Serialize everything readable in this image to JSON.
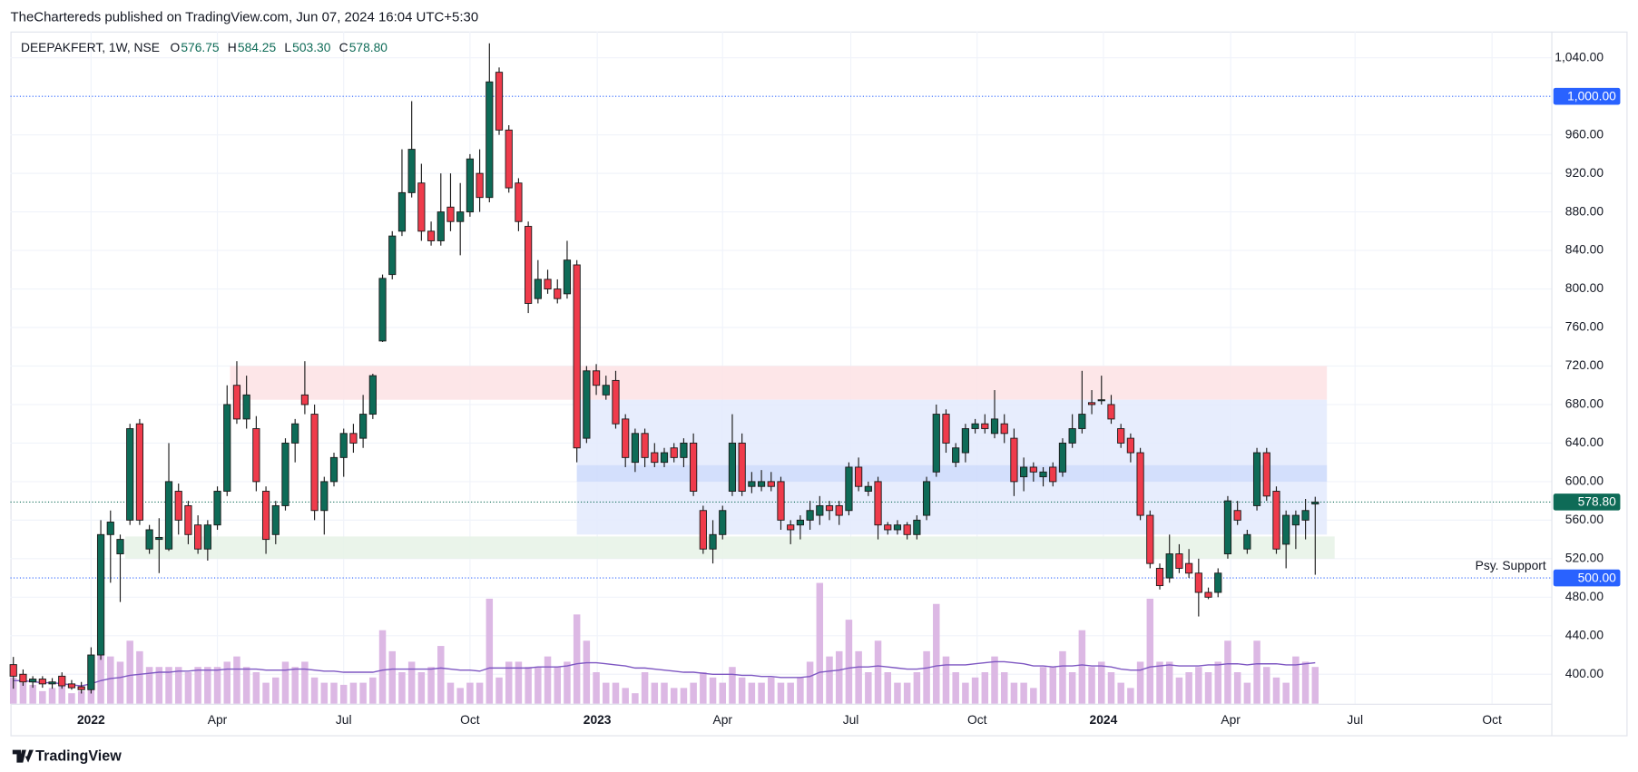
{
  "header": {
    "text": "TheChartereds published on TradingView.com, Jun 07, 2024 16:04 UTC+5:30"
  },
  "footer": {
    "brand": "TradingView"
  },
  "chart_data": {
    "type": "candlestick",
    "legend": {
      "title": "DEEPAKFERT, 1W, NSE",
      "items": [
        {
          "key": "O",
          "value": "576.75"
        },
        {
          "key": "H",
          "value": "584.25"
        },
        {
          "key": "L",
          "value": "503.30"
        },
        {
          "key": "C",
          "value": "578.80"
        }
      ]
    },
    "up_color": "#0e6b57",
    "down_color": "#ef3b4b",
    "volume_color": "#dcb8e4",
    "ma_color": "#7e57c2",
    "xlim": [
      -0.3,
      158.3
    ],
    "ylim": [
      369.4,
      1067.3
    ],
    "volume_ylim": [
      0,
      640
    ],
    "grid": true,
    "xticks": [
      {
        "value": 8,
        "label": "2022"
      },
      {
        "value": 21,
        "label": "Apr"
      },
      {
        "value": 34,
        "label": "Jul"
      },
      {
        "value": 47,
        "label": "Oct"
      },
      {
        "value": 60.1,
        "label": "2023"
      },
      {
        "value": 73,
        "label": "Apr"
      },
      {
        "value": 86.2,
        "label": "Jul"
      },
      {
        "value": 99.2,
        "label": "Oct"
      },
      {
        "value": 112.2,
        "label": "2024"
      },
      {
        "value": 125.3,
        "label": "Apr"
      },
      {
        "value": 138.1,
        "label": "Jul"
      },
      {
        "value": 152.2,
        "label": "Oct"
      }
    ],
    "yticks": [
      {
        "value": 400,
        "label": "400.00"
      },
      {
        "value": 440,
        "label": "440.00"
      },
      {
        "value": 480,
        "label": "480.00"
      },
      {
        "value": 520,
        "label": "520.00"
      },
      {
        "value": 560,
        "label": "560.00"
      },
      {
        "value": 600,
        "label": "600.00"
      },
      {
        "value": 640,
        "label": "640.00"
      },
      {
        "value": 680,
        "label": "680.00"
      },
      {
        "value": 720,
        "label": "720.00"
      },
      {
        "value": 760,
        "label": "760.00"
      },
      {
        "value": 800,
        "label": "800.00"
      },
      {
        "value": 840,
        "label": "840.00"
      },
      {
        "value": 880,
        "label": "880.00"
      },
      {
        "value": 920,
        "label": "920.00"
      },
      {
        "value": 960,
        "label": "960.00"
      },
      {
        "value": 1040,
        "label": "1,040.00"
      }
    ],
    "zones": [
      {
        "range": [
          685,
          720
        ],
        "start": 22.3,
        "end": 135.2,
        "color": "#fde2e4"
      },
      {
        "range": [
          545,
          685
        ],
        "start": 58,
        "end": 135.2,
        "color": "#e3eafd"
      },
      {
        "range": [
          600,
          617
        ],
        "start": 58,
        "end": 135.2,
        "color": "#cfdcfb"
      },
      {
        "range": [
          520,
          543
        ],
        "start": 11.5,
        "end": 136,
        "color": "#e6f2e6"
      }
    ],
    "price_lines": [
      {
        "value": 1000,
        "label": "1,000.00",
        "color": "#2962ff"
      },
      {
        "value": 500,
        "label": "500.00",
        "color": "#2962ff",
        "note": "Psy. Support"
      },
      {
        "value": 578.8,
        "label": "578.80",
        "color": "#0e6b57"
      }
    ],
    "candles": [
      [
        410,
        418,
        385,
        398
      ],
      [
        400,
        405,
        388,
        392
      ],
      [
        392,
        398,
        386,
        395
      ],
      [
        395,
        398,
        386,
        390
      ],
      [
        390,
        396,
        385,
        392
      ],
      [
        398,
        402,
        385,
        388
      ],
      [
        390,
        394,
        384,
        386
      ],
      [
        387,
        392,
        380,
        384
      ],
      [
        384,
        428,
        380,
        420
      ],
      [
        420,
        560,
        415,
        545
      ],
      [
        545,
        570,
        495,
        558
      ],
      [
        525,
        545,
        475,
        540
      ],
      [
        560,
        660,
        555,
        655
      ],
      [
        660,
        665,
        555,
        560
      ],
      [
        530,
        555,
        525,
        550
      ],
      [
        540,
        562,
        505,
        542
      ],
      [
        530,
        640,
        528,
        600
      ],
      [
        590,
        598,
        545,
        560
      ],
      [
        575,
        580,
        535,
        545
      ],
      [
        555,
        565,
        525,
        530
      ],
      [
        530,
        560,
        518,
        555
      ],
      [
        555,
        595,
        550,
        590
      ],
      [
        590,
        700,
        585,
        680
      ],
      [
        700,
        725,
        660,
        665
      ],
      [
        665,
        710,
        655,
        690
      ],
      [
        655,
        668,
        590,
        600
      ],
      [
        590,
        595,
        525,
        540
      ],
      [
        545,
        580,
        535,
        575
      ],
      [
        575,
        645,
        570,
        640
      ],
      [
        640,
        665,
        620,
        660
      ],
      [
        690,
        725,
        670,
        680
      ],
      [
        670,
        680,
        560,
        570
      ],
      [
        570,
        605,
        545,
        600
      ],
      [
        600,
        630,
        595,
        625
      ],
      [
        625,
        655,
        605,
        650
      ],
      [
        650,
        660,
        630,
        640
      ],
      [
        645,
        690,
        635,
        670
      ],
      [
        670,
        712,
        665,
        710
      ],
      [
        746,
        815,
        745,
        811
      ],
      [
        815,
        860,
        810,
        855
      ],
      [
        860,
        945,
        855,
        900
      ],
      [
        900,
        995,
        895,
        945
      ],
      [
        910,
        930,
        850,
        860
      ],
      [
        860,
        870,
        845,
        850
      ],
      [
        850,
        920,
        845,
        880
      ],
      [
        885,
        920,
        860,
        870
      ],
      [
        870,
        910,
        835,
        880
      ],
      [
        880,
        940,
        875,
        935
      ],
      [
        920,
        945,
        880,
        895
      ],
      [
        895,
        1055,
        890,
        1015
      ],
      [
        1025,
        1030,
        960,
        965
      ],
      [
        965,
        970,
        900,
        905
      ],
      [
        910,
        915,
        860,
        870
      ],
      [
        865,
        870,
        775,
        785
      ],
      [
        790,
        830,
        785,
        810
      ],
      [
        810,
        820,
        795,
        800
      ],
      [
        800,
        810,
        785,
        790
      ],
      [
        795,
        850,
        790,
        830
      ],
      [
        825,
        830,
        620,
        635
      ],
      [
        645,
        720,
        640,
        715
      ],
      [
        715,
        722,
        690,
        700
      ],
      [
        690,
        710,
        685,
        700
      ],
      [
        705,
        715,
        655,
        660
      ],
      [
        665,
        670,
        615,
        625
      ],
      [
        620,
        655,
        610,
        650
      ],
      [
        650,
        655,
        615,
        625
      ],
      [
        630,
        640,
        615,
        620
      ],
      [
        620,
        635,
        615,
        630
      ],
      [
        635,
        640,
        620,
        625
      ],
      [
        625,
        645,
        615,
        640
      ],
      [
        640,
        650,
        585,
        590
      ],
      [
        570,
        575,
        525,
        530
      ],
      [
        530,
        560,
        515,
        545
      ],
      [
        545,
        575,
        540,
        570
      ],
      [
        590,
        670,
        585,
        640
      ],
      [
        640,
        650,
        585,
        590
      ],
      [
        595,
        610,
        588,
        600
      ],
      [
        595,
        612,
        590,
        600
      ],
      [
        600,
        610,
        590,
        595
      ],
      [
        600,
        605,
        550,
        560
      ],
      [
        555,
        560,
        535,
        550
      ],
      [
        555,
        565,
        540,
        560
      ],
      [
        560,
        580,
        550,
        570
      ],
      [
        565,
        585,
        555,
        575
      ],
      [
        575,
        580,
        560,
        570
      ],
      [
        575,
        580,
        555,
        565
      ],
      [
        570,
        620,
        565,
        615
      ],
      [
        615,
        625,
        590,
        595
      ],
      [
        590,
        600,
        585,
        595
      ],
      [
        600,
        605,
        540,
        555
      ],
      [
        555,
        558,
        545,
        550
      ],
      [
        550,
        560,
        545,
        555
      ],
      [
        555,
        558,
        540,
        545
      ],
      [
        545,
        565,
        540,
        560
      ],
      [
        565,
        605,
        560,
        600
      ],
      [
        610,
        680,
        605,
        670
      ],
      [
        670,
        675,
        630,
        640
      ],
      [
        620,
        640,
        615,
        635
      ],
      [
        630,
        660,
        620,
        655
      ],
      [
        655,
        665,
        650,
        660
      ],
      [
        660,
        670,
        650,
        655
      ],
      [
        650,
        695,
        645,
        665
      ],
      [
        660,
        670,
        640,
        650
      ],
      [
        645,
        655,
        585,
        600
      ],
      [
        605,
        625,
        590,
        615
      ],
      [
        615,
        620,
        600,
        610
      ],
      [
        605,
        615,
        595,
        610
      ],
      [
        615,
        620,
        595,
        600
      ],
      [
        610,
        645,
        605,
        640
      ],
      [
        640,
        670,
        635,
        655
      ],
      [
        655,
        715,
        650,
        670
      ],
      [
        682,
        695,
        670,
        680
      ],
      [
        685,
        710,
        680,
        685
      ],
      [
        680,
        690,
        660,
        665
      ],
      [
        655,
        660,
        635,
        640
      ],
      [
        645,
        650,
        620,
        630
      ],
      [
        630,
        635,
        560,
        565
      ],
      [
        565,
        570,
        510,
        515
      ],
      [
        510,
        515,
        488,
        492
      ],
      [
        500,
        545,
        495,
        525
      ],
      [
        525,
        535,
        505,
        510
      ],
      [
        515,
        530,
        500,
        505
      ],
      [
        505,
        520,
        460,
        485
      ],
      [
        485,
        490,
        478,
        480
      ],
      [
        485,
        510,
        480,
        505
      ],
      [
        525,
        585,
        520,
        580
      ],
      [
        570,
        580,
        555,
        560
      ],
      [
        530,
        550,
        525,
        545
      ],
      [
        575,
        635,
        570,
        630
      ],
      [
        630,
        635,
        580,
        585
      ],
      [
        590,
        595,
        525,
        530
      ],
      [
        535,
        570,
        510,
        565
      ],
      [
        555,
        570,
        530,
        565
      ],
      [
        560,
        582,
        540,
        570
      ],
      [
        576.75,
        584.25,
        503.3,
        578.8
      ]
    ],
    "volume": [
      25,
      20,
      18,
      12,
      15,
      18,
      10,
      12,
      40,
      80,
      45,
      40,
      60,
      50,
      35,
      35,
      35,
      35,
      30,
      35,
      35,
      35,
      40,
      45,
      35,
      30,
      20,
      25,
      40,
      35,
      40,
      25,
      20,
      20,
      18,
      20,
      20,
      25,
      70,
      50,
      30,
      40,
      30,
      35,
      55,
      20,
      15,
      20,
      20,
      100,
      25,
      40,
      40,
      35,
      35,
      45,
      35,
      40,
      85,
      60,
      30,
      20,
      20,
      15,
      10,
      30,
      20,
      20,
      15,
      15,
      20,
      30,
      25,
      20,
      35,
      25,
      20,
      20,
      25,
      20,
      20,
      25,
      40,
      115,
      45,
      50,
      80,
      50,
      30,
      60,
      30,
      20,
      20,
      30,
      50,
      95,
      45,
      30,
      20,
      25,
      30,
      45,
      30,
      20,
      20,
      15,
      35,
      35,
      50,
      30,
      70,
      35,
      40,
      30,
      20,
      15,
      40,
      100,
      40,
      40,
      25,
      30,
      35,
      30,
      40,
      60,
      30,
      20,
      60,
      35,
      25,
      20,
      45,
      40,
      35
    ],
    "volume_ma": [
      22,
      22,
      21,
      20,
      20,
      19,
      18,
      17,
      19,
      22,
      24,
      25,
      27,
      28,
      29,
      30,
      30,
      31,
      31,
      32,
      32,
      32,
      33,
      33,
      33,
      33,
      32,
      32,
      32,
      33,
      33,
      32,
      31,
      31,
      30,
      30,
      30,
      30,
      32,
      33,
      33,
      33,
      33,
      33,
      34,
      33,
      32,
      32,
      31,
      34,
      34,
      34,
      34,
      34,
      35,
      35,
      35,
      36,
      38,
      39,
      39,
      38,
      37,
      36,
      34,
      34,
      33,
      32,
      31,
      30,
      30,
      29,
      28,
      28,
      28,
      27,
      27,
      26,
      26,
      25,
      25,
      25,
      26,
      30,
      31,
      32,
      34,
      35,
      35,
      36,
      35,
      34,
      33,
      33,
      34,
      36,
      37,
      37,
      37,
      38,
      39,
      40,
      40,
      39,
      38,
      36,
      36,
      35,
      36,
      36,
      37,
      36,
      36,
      35,
      33,
      32,
      32,
      35,
      36,
      37,
      36,
      36,
      36,
      37,
      37,
      38,
      38,
      37,
      38,
      38,
      38,
      37,
      37,
      38,
      39
    ]
  }
}
